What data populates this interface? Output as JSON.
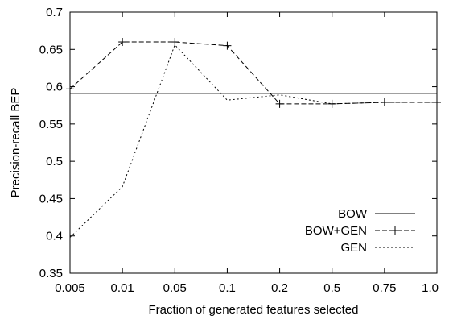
{
  "chart_data": {
    "type": "line",
    "title": "",
    "xlabel": "Fraction of generated features selected",
    "ylabel": "Precision-recall BEP",
    "categories": [
      "0.005",
      "0.01",
      "0.05",
      "0.1",
      "0.2",
      "0.5",
      "0.75",
      "1.0"
    ],
    "ylim": [
      0.35,
      0.7
    ],
    "yticks": [
      "0.35",
      "0.4",
      "0.45",
      "0.5",
      "0.55",
      "0.6",
      "0.65",
      "0.7"
    ],
    "grid": false,
    "legend_position": "bottom-right",
    "series": [
      {
        "name": "BOW",
        "style": "solid",
        "marker": "none",
        "values": [
          0.591,
          0.591,
          0.591,
          0.591,
          0.591,
          0.591,
          0.591,
          0.591
        ]
      },
      {
        "name": "BOW+GEN",
        "style": "dashed",
        "marker": "plus",
        "values": [
          0.597,
          0.66,
          0.66,
          0.655,
          0.577,
          0.577,
          0.579,
          0.579
        ]
      },
      {
        "name": "GEN",
        "style": "dotted",
        "marker": "none",
        "values": [
          0.398,
          0.466,
          0.656,
          0.582,
          0.589,
          0.577,
          0.579,
          0.579
        ]
      }
    ]
  }
}
